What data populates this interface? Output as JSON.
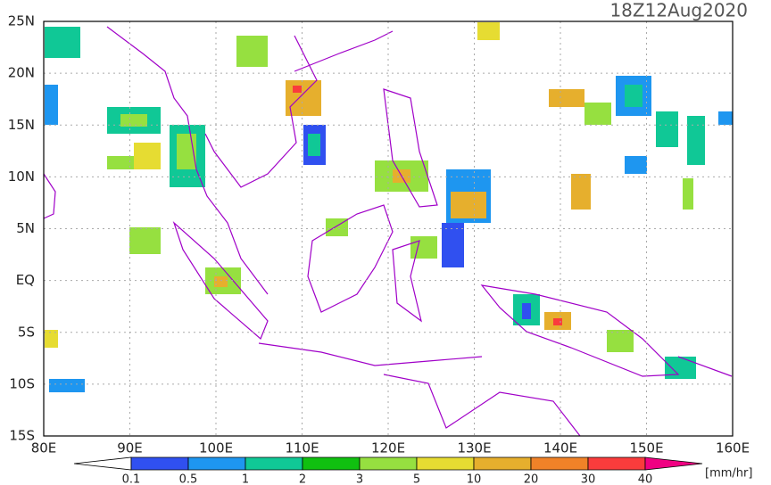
{
  "map": {
    "title": "18Z12Aug2020",
    "lon_range": [
      80,
      160
    ],
    "lat_range": [
      -15,
      25
    ],
    "lon_ticks": [
      {
        "value": 80,
        "label": "80E"
      },
      {
        "value": 90,
        "label": "90E"
      },
      {
        "value": 100,
        "label": "100E"
      },
      {
        "value": 110,
        "label": "110E"
      },
      {
        "value": 120,
        "label": "120E"
      },
      {
        "value": 130,
        "label": "130E"
      },
      {
        "value": 140,
        "label": "140E"
      },
      {
        "value": 150,
        "label": "150E"
      },
      {
        "value": 160,
        "label": "160E"
      }
    ],
    "lat_ticks": [
      {
        "value": 25,
        "label": "25N"
      },
      {
        "value": 20,
        "label": "20N"
      },
      {
        "value": 15,
        "label": "15N"
      },
      {
        "value": 10,
        "label": "10N"
      },
      {
        "value": 5,
        "label": "5N"
      },
      {
        "value": 0,
        "label": "EQ"
      },
      {
        "value": -5,
        "label": "5S"
      },
      {
        "value": -10,
        "label": "10S"
      },
      {
        "value": -15,
        "label": "15S"
      }
    ],
    "grid": true,
    "colorbar": {
      "levels": [
        0.1,
        0.5,
        1,
        2,
        3,
        5,
        10,
        20,
        30,
        40
      ],
      "colors": [
        "#ffffff",
        "#3050f0",
        "#1e96f0",
        "#10c896",
        "#10c010",
        "#96e040",
        "#e6dc32",
        "#e6af2d",
        "#f08228",
        "#fa3c3c",
        "#f00082"
      ],
      "unit": "[mm/hr]"
    }
  }
}
